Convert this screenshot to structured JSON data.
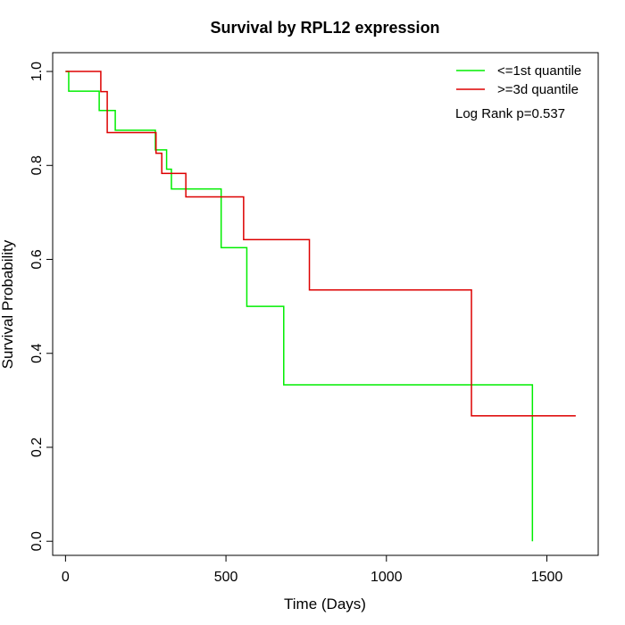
{
  "chart_data": {
    "type": "line",
    "title": "Survival by RPL12 expression",
    "xlabel": "Time (Days)",
    "ylabel": "Survival Probability",
    "xlim": [
      -40,
      1660
    ],
    "ylim": [
      -0.03,
      1.04
    ],
    "xticks": [
      0,
      500,
      1000,
      1500
    ],
    "xtick_labels": [
      "0",
      "500",
      "1000",
      "1500"
    ],
    "yticks": [
      0.0,
      0.2,
      0.4,
      0.6,
      0.8,
      1.0
    ],
    "ytick_labels": [
      "0.0",
      "0.2",
      "0.4",
      "0.6",
      "0.8",
      "1.0"
    ],
    "grid": false,
    "legend_position": "top-right",
    "annotation": "Log Rank p=0.537",
    "series": [
      {
        "name": "<=1st quantile",
        "color": "#00ee00",
        "step_points": [
          [
            0,
            1.0
          ],
          [
            10,
            1.0
          ],
          [
            10,
            0.958
          ],
          [
            105,
            0.958
          ],
          [
            105,
            0.917
          ],
          [
            155,
            0.917
          ],
          [
            155,
            0.875
          ],
          [
            280,
            0.875
          ],
          [
            280,
            0.833
          ],
          [
            315,
            0.833
          ],
          [
            315,
            0.792
          ],
          [
            330,
            0.792
          ],
          [
            330,
            0.75
          ],
          [
            485,
            0.75
          ],
          [
            485,
            0.625
          ],
          [
            565,
            0.625
          ],
          [
            565,
            0.5
          ],
          [
            680,
            0.5
          ],
          [
            680,
            0.333
          ],
          [
            1455,
            0.333
          ],
          [
            1455,
            0.0
          ]
        ]
      },
      {
        "name": ">=3d quantile",
        "color": "#dd0000",
        "step_points": [
          [
            0,
            1.0
          ],
          [
            110,
            1.0
          ],
          [
            110,
            0.957
          ],
          [
            130,
            0.957
          ],
          [
            130,
            0.87
          ],
          [
            282,
            0.87
          ],
          [
            282,
            0.826
          ],
          [
            300,
            0.826
          ],
          [
            300,
            0.783
          ],
          [
            375,
            0.783
          ],
          [
            375,
            0.733
          ],
          [
            555,
            0.733
          ],
          [
            555,
            0.642
          ],
          [
            760,
            0.642
          ],
          [
            760,
            0.535
          ],
          [
            1265,
            0.535
          ],
          [
            1265,
            0.267
          ],
          [
            1590,
            0.267
          ]
        ]
      }
    ]
  }
}
